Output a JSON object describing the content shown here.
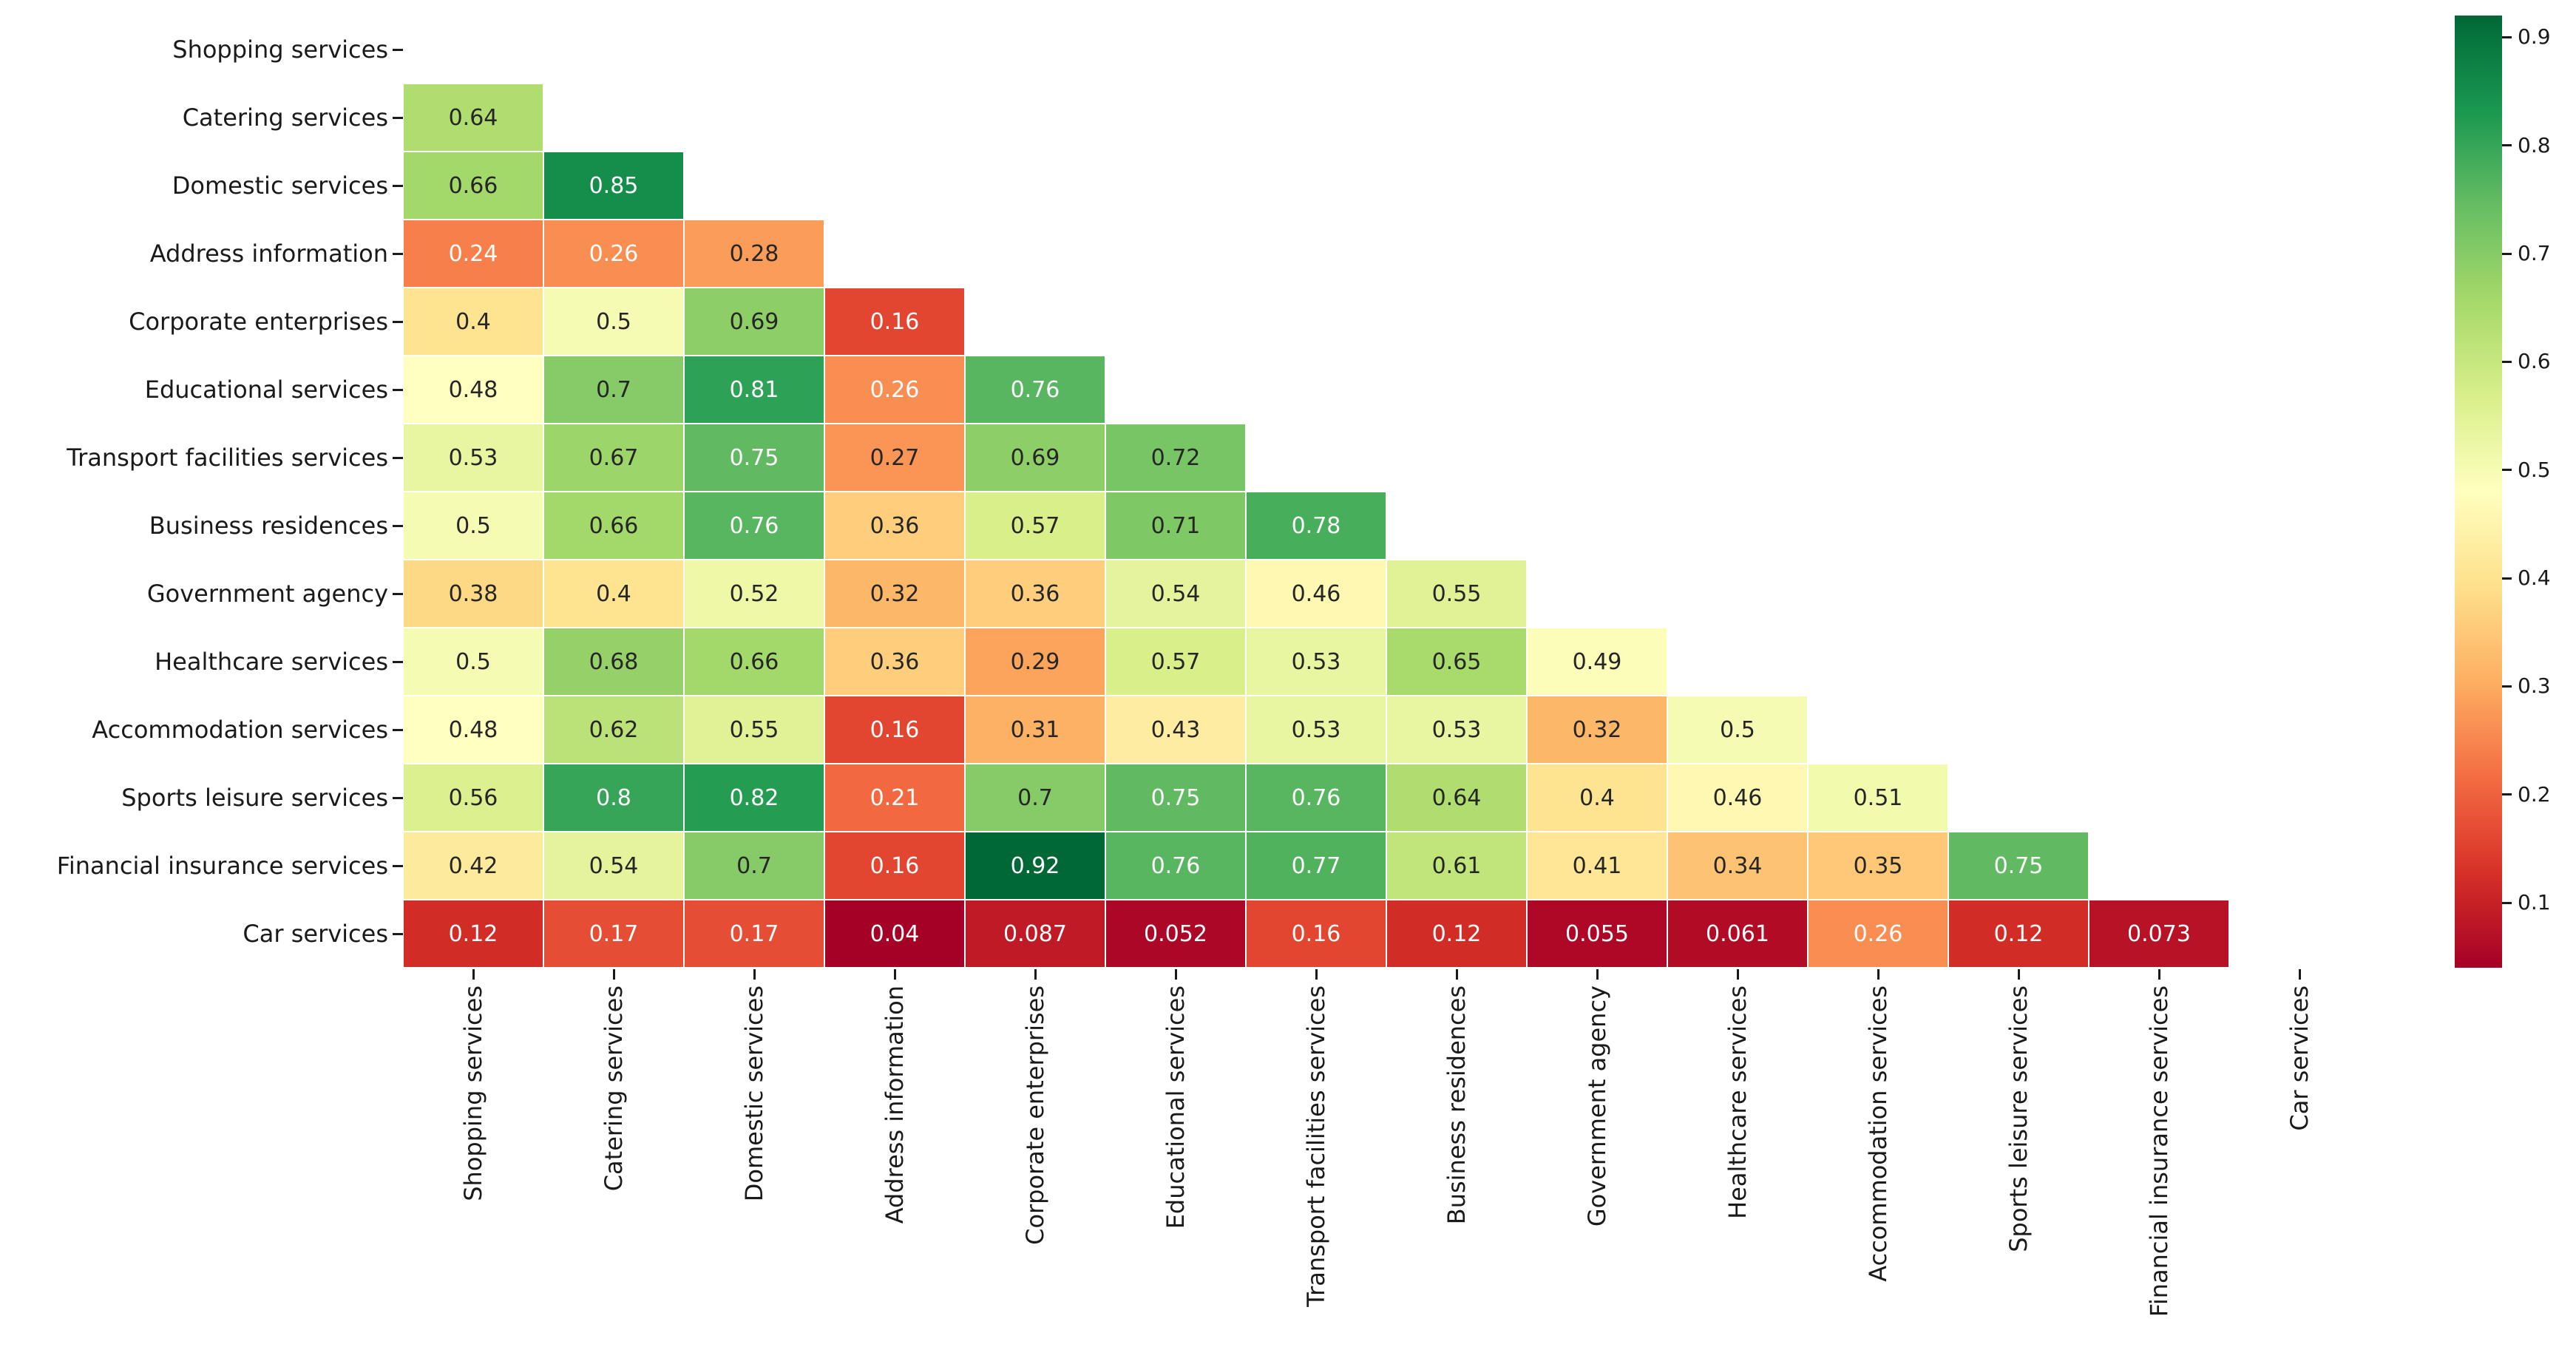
{
  "chart_data": {
    "type": "heatmap",
    "title": "",
    "description": "Lower-triangular correlation heatmap of service categories (diagonal and upper triangle masked)",
    "categories": [
      "Shopping services",
      "Catering services",
      "Domestic services",
      "Address information",
      "Corporate enterprises",
      "Educational services",
      "Transport facilities services",
      "Business residences",
      "Government agency",
      "Healthcare services",
      "Accommodation services",
      "Sports leisure services",
      "Financial insurance services",
      "Car services"
    ],
    "matrix": [
      [],
      [
        0.64
      ],
      [
        0.66,
        0.85
      ],
      [
        0.24,
        0.26,
        0.28
      ],
      [
        0.4,
        0.5,
        0.69,
        0.16
      ],
      [
        0.48,
        0.7,
        0.81,
        0.26,
        0.76
      ],
      [
        0.53,
        0.67,
        0.75,
        0.27,
        0.69,
        0.72
      ],
      [
        0.5,
        0.66,
        0.76,
        0.36,
        0.57,
        0.71,
        0.78
      ],
      [
        0.38,
        0.4,
        0.52,
        0.32,
        0.36,
        0.54,
        0.46,
        0.55
      ],
      [
        0.5,
        0.68,
        0.66,
        0.36,
        0.29,
        0.57,
        0.53,
        0.65,
        0.49
      ],
      [
        0.48,
        0.62,
        0.55,
        0.16,
        0.31,
        0.43,
        0.53,
        0.53,
        0.32,
        0.5
      ],
      [
        0.56,
        0.8,
        0.82,
        0.21,
        0.7,
        0.75,
        0.76,
        0.64,
        0.4,
        0.46,
        0.51
      ],
      [
        0.42,
        0.54,
        0.7,
        0.16,
        0.92,
        0.76,
        0.77,
        0.61,
        0.41,
        0.34,
        0.35,
        0.75
      ],
      [
        0.12,
        0.17,
        0.17,
        0.04,
        0.087,
        0.052,
        0.16,
        0.12,
        0.055,
        0.061,
        0.26,
        0.12,
        0.073
      ]
    ],
    "mask": "upper-triangle-and-diagonal",
    "vmin": 0.04,
    "vmax": 0.92,
    "colormap": {
      "name": "RdYlGn",
      "stops": [
        "#a50026",
        "#d73027",
        "#f46d43",
        "#fdae61",
        "#fee08b",
        "#ffffbf",
        "#d9ef8b",
        "#a6d96a",
        "#66bd63",
        "#1a9850",
        "#006837"
      ]
    },
    "colorbar_ticks": [
      0.9,
      0.8,
      0.7,
      0.6,
      0.5,
      0.4,
      0.3,
      0.2,
      0.1
    ],
    "legend_position": "right",
    "grid": "off",
    "background": "#ffffff",
    "annotation_colors": {
      "on_dark": "#ffffff",
      "on_light": "#262626"
    },
    "axis_tick_color": "#1a1a1a"
  }
}
